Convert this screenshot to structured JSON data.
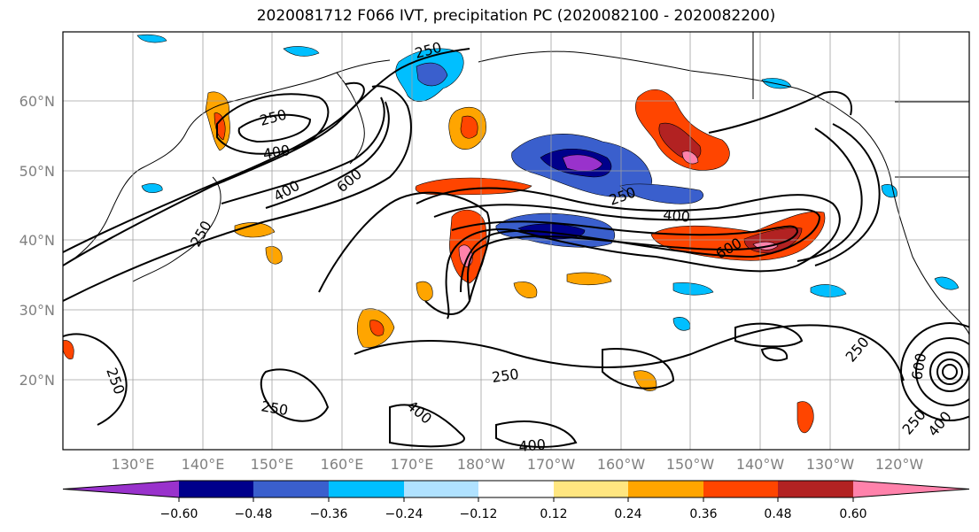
{
  "title": "2020081712 F066 IVT, precipitation PC (2020082100 - 2020082200)",
  "map": {
    "lat_labels": [
      "60°N",
      "50°N",
      "40°N",
      "30°N",
      "20°N"
    ],
    "lon_labels": [
      "130°E",
      "140°E",
      "150°E",
      "160°E",
      "170°E",
      "180°W",
      "170°W",
      "160°W",
      "150°W",
      "140°W",
      "130°W",
      "120°W"
    ],
    "ivt_contour_levels": [
      250,
      400,
      600
    ],
    "ivt_contour_labels": [
      "250",
      "400",
      "250",
      "400",
      "600",
      "250",
      "400",
      "600",
      "250",
      "250",
      "250",
      "400",
      "400",
      "250",
      "600",
      "250",
      "400",
      "250"
    ]
  },
  "colorbar": {
    "tick_labels": [
      "−0.60",
      "−0.48",
      "−0.36",
      "−0.24",
      "−0.12",
      "0.12",
      "0.24",
      "0.36",
      "0.48",
      "0.60"
    ],
    "colors": [
      "#9932cc",
      "#00008b",
      "#3a5fcd",
      "#00bfff",
      "#b0e2ff",
      "#ffffff",
      "#ffe680",
      "#ffa500",
      "#ff4500",
      "#b22222",
      "#ff82ab"
    ]
  }
}
